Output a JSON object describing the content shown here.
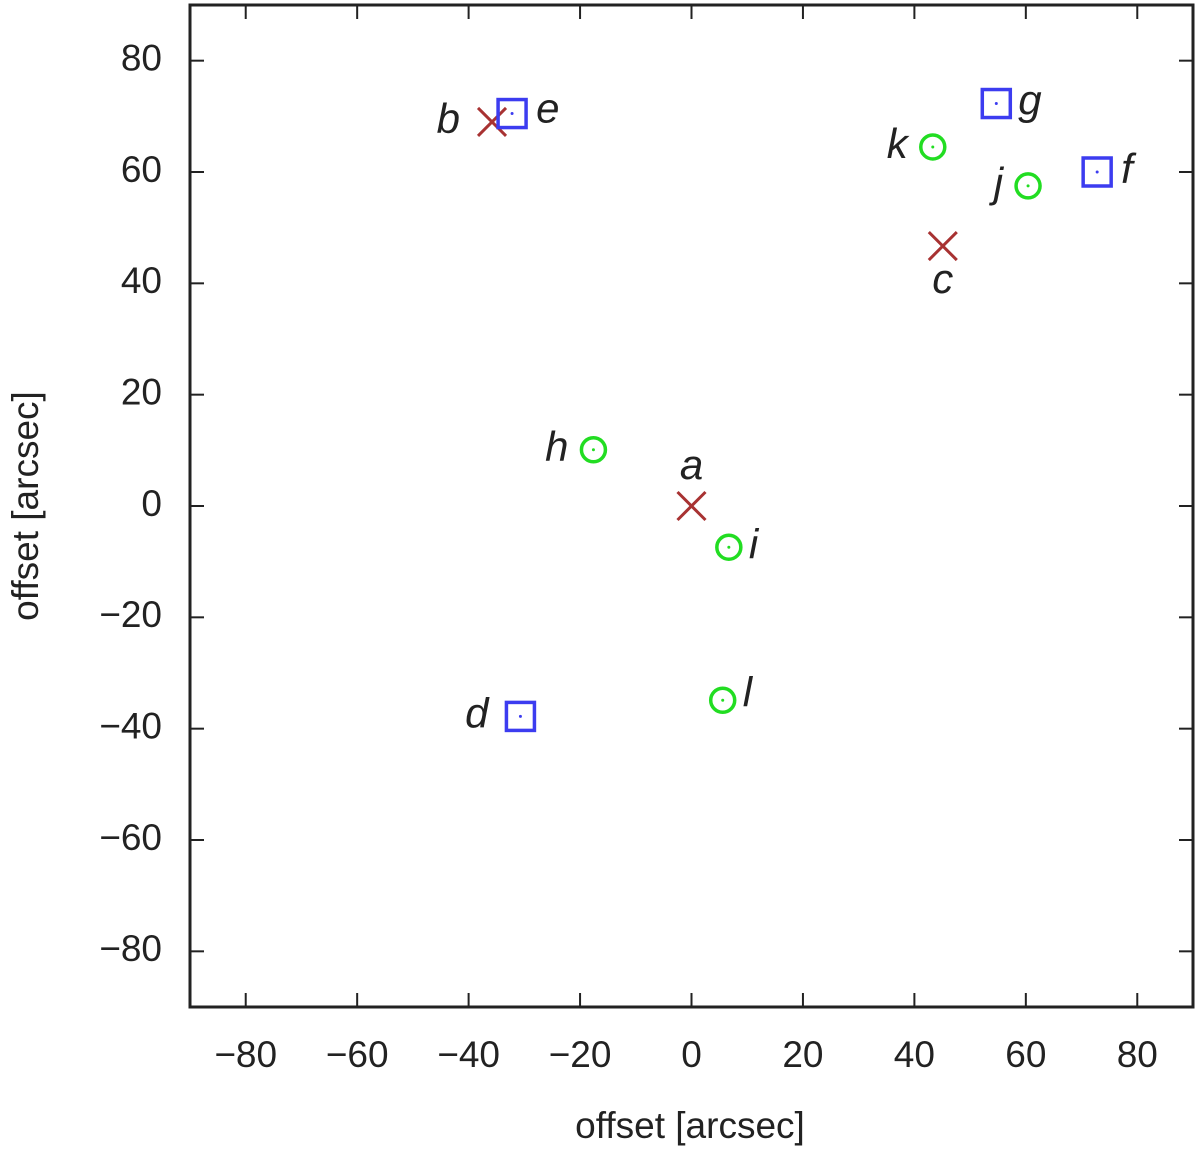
{
  "chart_data": {
    "type": "scatter",
    "xlabel": "offset [arcsec]",
    "ylabel": "offset [arcsec]",
    "xlim": [
      -90,
      90
    ],
    "ylim": [
      -90,
      90
    ],
    "xticks": [
      {
        "value": -80,
        "label": "−80"
      },
      {
        "value": -60,
        "label": "−60"
      },
      {
        "value": -40,
        "label": "−40"
      },
      {
        "value": -20,
        "label": "−20"
      },
      0,
      20,
      40,
      60,
      80
    ],
    "yticks": [
      {
        "value": -80,
        "label": "−80"
      },
      {
        "value": -60,
        "label": "−60"
      },
      {
        "value": -40,
        "label": "−40"
      },
      {
        "value": -20,
        "label": "−20"
      },
      0,
      20,
      40,
      60,
      80
    ],
    "series": [
      {
        "marker": "x",
        "color": "#a83232",
        "labels": [
          "a",
          "b",
          "c"
        ],
        "x": [
          0,
          -35.8,
          45.1
        ],
        "values": [
          0,
          69.0,
          46.7
        ]
      },
      {
        "marker": "square",
        "color": "#3c3cf0",
        "labels": [
          "d",
          "e",
          "f",
          "g"
        ],
        "x": [
          -30.7,
          -32.2,
          72.8,
          54.7
        ],
        "values": [
          -37.8,
          70.5,
          60.0,
          72.3
        ]
      },
      {
        "marker": "circle",
        "color": "#22dd22",
        "labels": [
          "h",
          "i",
          "j",
          "k",
          "l"
        ],
        "x": [
          -17.6,
          6.7,
          60.4,
          43.3,
          5.6
        ],
        "values": [
          10.1,
          -7.4,
          57.5,
          64.5,
          -34.9
        ]
      }
    ]
  }
}
